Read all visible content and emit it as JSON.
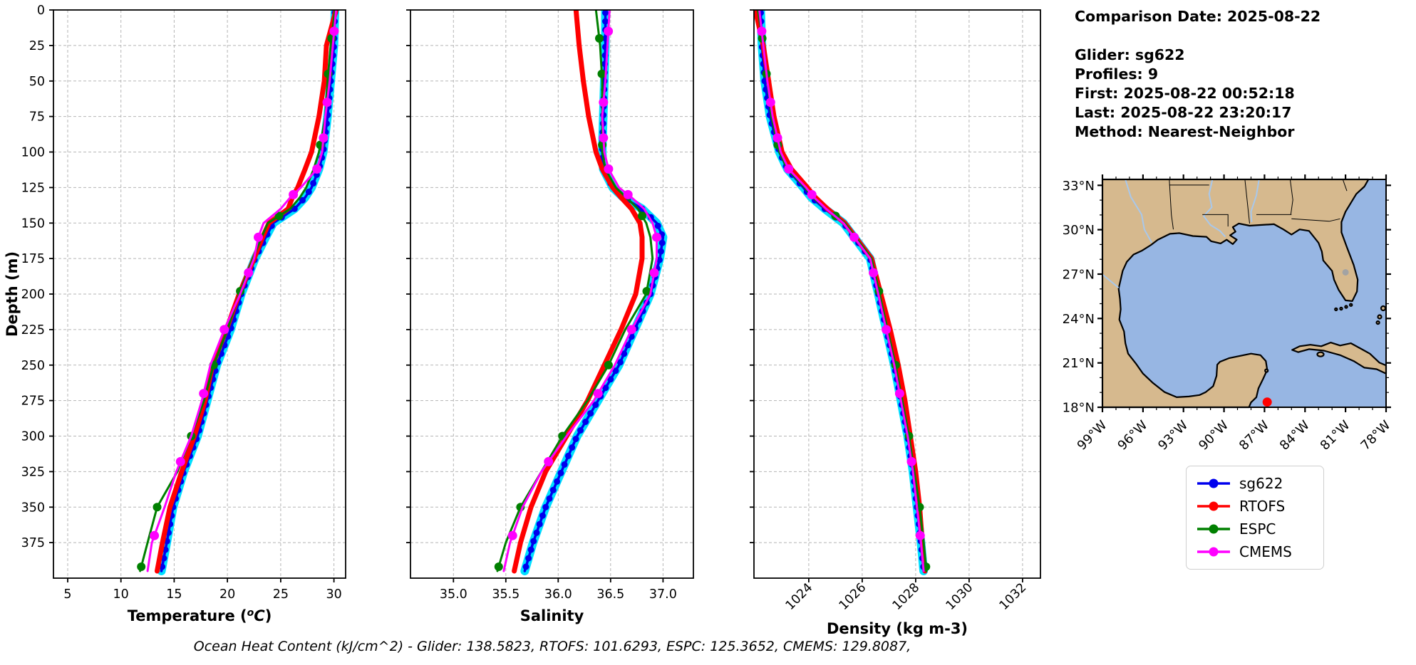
{
  "info_panel": {
    "comparison_date": "Comparison Date: 2025-08-22",
    "glider": "Glider: sg622",
    "profiles": "Profiles: 9",
    "first": "First: 2025-08-22 00:52:18",
    "last": "Last: 2025-08-22 23:20:17",
    "method": "Method: Nearest-Neighbor"
  },
  "ohc_line": "Ocean Heat Content (kJ/cm^2) - Glider: 138.5823,  RTOFS: 101.6293,  ESPC: 125.3652,  CMEMS: 129.8087,",
  "legend": {
    "items": [
      {
        "label": "sg622",
        "color": "#0000ee"
      },
      {
        "label": "RTOFS",
        "color": "#ff0000"
      },
      {
        "label": "ESPC",
        "color": "#008000"
      },
      {
        "label": "CMEMS",
        "color": "#ff00ff"
      }
    ]
  },
  "chart_data": {
    "type": "line",
    "kind": "ocean-depth-profiles",
    "ylabel": "Depth (m)",
    "ylim": [
      0,
      400
    ],
    "depth_ticks": [
      0,
      25,
      50,
      75,
      100,
      125,
      150,
      175,
      200,
      225,
      250,
      275,
      300,
      325,
      350,
      375
    ],
    "depths": [
      0,
      25,
      50,
      75,
      100,
      112,
      125,
      132,
      140,
      150,
      160,
      175,
      200,
      225,
      250,
      275,
      300,
      325,
      350,
      375,
      395
    ],
    "grid": true,
    "legend_position": "below-map",
    "series_styles": {
      "sg622": {
        "color": "#0000ee",
        "halo": "#00e0ff",
        "line_width": 3.5,
        "marker_r": 4.5,
        "marker_every_m": 6
      },
      "RTOFS": {
        "color": "#ff0000",
        "line_width": 7,
        "marker_r": 0
      },
      "ESPC": {
        "color": "#008000",
        "line_width": 3,
        "marker_r": 6,
        "marker_depths": [
          20,
          45,
          95,
          145,
          198,
          250,
          300,
          350,
          392
        ]
      },
      "CMEMS": {
        "color": "#ff00ff",
        "line_width": 3,
        "marker_r": 6.5,
        "marker_depths": [
          15,
          65,
          90,
          112,
          130,
          160,
          185,
          225,
          270,
          318,
          370
        ]
      }
    },
    "panels": [
      {
        "id": "temperature",
        "xlabel_pre": "Temperature (",
        "xlabel_sup": "o",
        "xlabel_it": "C",
        "xlabel_post": ")",
        "xlim": [
          3.66,
          31.1
        ],
        "xticks": [
          5,
          10,
          15,
          20,
          25,
          30
        ],
        "xtick_labels": [
          "5",
          "10",
          "15",
          "20",
          "25",
          "30"
        ],
        "rotate_xtick_labels": false,
        "series": [
          {
            "name": "sg622",
            "values": [
              30.1,
              30.0,
              29.7,
              29.4,
              29.0,
              28.6,
              27.9,
              27.3,
              26.3,
              24.3,
              23.6,
              22.6,
              21.3,
              20.3,
              19.0,
              18.1,
              17.2,
              15.9,
              14.9,
              14.3,
              13.8
            ]
          },
          {
            "name": "RTOFS",
            "values": [
              30.2,
              29.3,
              29.1,
              28.6,
              27.9,
              27.3,
              26.6,
              26.1,
              25.7,
              23.9,
              23.3,
              22.5,
              21.1,
              19.9,
              18.6,
              17.9,
              16.9,
              15.7,
              14.6,
              13.9,
              13.4
            ]
          },
          {
            "name": "ESPC",
            "values": [
              30.1,
              29.7,
              29.4,
              29.2,
              28.6,
              28.1,
              27.4,
              26.8,
              25.9,
              23.8,
              23.2,
              22.4,
              21.1,
              20.0,
              18.7,
              17.8,
              16.6,
              15.3,
              13.4,
              12.5,
              11.8
            ]
          },
          {
            "name": "CMEMS",
            "values": [
              30.2,
              29.9,
              29.6,
              29.2,
              28.9,
              28.4,
              26.9,
              25.9,
              25.0,
              23.4,
              22.9,
              22.5,
              21.2,
              19.7,
              18.4,
              17.6,
              16.6,
              15.2,
              14.1,
              12.9,
              12.5
            ]
          }
        ]
      },
      {
        "id": "salinity",
        "xlabel": "Salinity",
        "xlim": [
          34.59,
          37.29
        ],
        "xticks": [
          35.0,
          35.5,
          36.0,
          36.5,
          37.0
        ],
        "xtick_labels": [
          "35.0",
          "35.5",
          "36.0",
          "36.5",
          "37.0"
        ],
        "rotate_xtick_labels": false,
        "series": [
          {
            "name": "sg622",
            "values": [
              36.45,
              36.45,
              36.44,
              36.43,
              36.42,
              36.43,
              36.52,
              36.62,
              36.8,
              36.94,
              37.0,
              36.97,
              36.88,
              36.73,
              36.58,
              36.38,
              36.18,
              36.03,
              35.88,
              35.76,
              35.68
            ]
          },
          {
            "name": "RTOFS",
            "values": [
              36.17,
              36.2,
              36.24,
              36.29,
              36.36,
              36.42,
              36.52,
              36.6,
              36.7,
              36.78,
              36.8,
              36.8,
              36.74,
              36.6,
              36.44,
              36.28,
              36.08,
              35.88,
              35.74,
              35.64,
              35.58
            ]
          },
          {
            "name": "ESPC",
            "values": [
              36.36,
              36.4,
              36.42,
              36.42,
              36.42,
              36.45,
              36.55,
              36.65,
              36.76,
              36.84,
              36.88,
              36.9,
              36.84,
              36.64,
              36.48,
              36.28,
              36.04,
              35.84,
              35.64,
              35.5,
              35.42
            ]
          },
          {
            "name": "CMEMS",
            "values": [
              36.49,
              36.47,
              36.45,
              36.42,
              36.44,
              36.48,
              36.58,
              36.7,
              36.82,
              36.9,
              36.94,
              36.94,
              36.88,
              36.7,
              36.54,
              36.34,
              36.08,
              35.84,
              35.66,
              35.54,
              35.48
            ]
          }
        ]
      },
      {
        "id": "density",
        "xlabel": "Density (kg m-3)",
        "xlim": [
          1021.95,
          1032.67
        ],
        "xticks": [
          1024,
          1026,
          1028,
          1030,
          1032
        ],
        "xtick_labels": [
          "1024",
          "1026",
          "1028",
          "1030",
          "1032"
        ],
        "rotate_xtick_labels": true,
        "series": [
          {
            "name": "sg622",
            "values": [
              1022.2,
              1022.25,
              1022.35,
              1022.55,
              1022.9,
              1023.2,
              1023.8,
              1024.1,
              1024.6,
              1025.3,
              1025.7,
              1026.3,
              1026.6,
              1026.9,
              1027.2,
              1027.45,
              1027.7,
              1027.9,
              1028.05,
              1028.2,
              1028.3
            ]
          },
          {
            "name": "RTOFS",
            "values": [
              1022.0,
              1022.3,
              1022.5,
              1022.7,
              1023.0,
              1023.35,
              1023.95,
              1024.25,
              1024.7,
              1025.35,
              1025.75,
              1026.35,
              1026.7,
              1027.05,
              1027.35,
              1027.6,
              1027.8,
              1028.0,
              1028.15,
              1028.25,
              1028.35
            ]
          },
          {
            "name": "ESPC",
            "values": [
              1022.1,
              1022.3,
              1022.45,
              1022.6,
              1022.9,
              1023.2,
              1023.85,
              1024.15,
              1024.65,
              1025.35,
              1025.75,
              1026.35,
              1026.65,
              1026.95,
              1027.25,
              1027.5,
              1027.75,
              1027.95,
              1028.15,
              1028.3,
              1028.4
            ]
          },
          {
            "name": "CMEMS",
            "values": [
              1022.15,
              1022.3,
              1022.45,
              1022.65,
              1022.95,
              1023.25,
              1023.9,
              1024.2,
              1024.65,
              1025.3,
              1025.7,
              1026.3,
              1026.6,
              1026.9,
              1027.2,
              1027.45,
              1027.7,
              1027.9,
              1028.05,
              1028.2,
              1028.3
            ]
          }
        ]
      }
    ]
  },
  "map": {
    "land_color": "#d6b98e",
    "water_color": "#97b6e3",
    "river_color": "#a8c8ec",
    "lake_color": "#a3a3a3",
    "coast_color": "#000000",
    "extent": {
      "west": 99,
      "east": 78,
      "north": 33.4,
      "south": 18.0
    },
    "lat_ticks": [
      33,
      30,
      27,
      24,
      21,
      18
    ],
    "lat_labels": [
      "33°N",
      "30°N",
      "27°N",
      "24°N",
      "21°N",
      "18°N"
    ],
    "lon_ticks": [
      99,
      96,
      93,
      90,
      87,
      84,
      81,
      78
    ],
    "lon_labels": [
      "99°W",
      "96°W",
      "93°W",
      "90°W",
      "87°W",
      "84°W",
      "81°W",
      "78°W"
    ],
    "marker": {
      "name": "glider-location",
      "lon_w": 86.8,
      "lat_n": 18.35,
      "color": "#ff0000"
    }
  }
}
